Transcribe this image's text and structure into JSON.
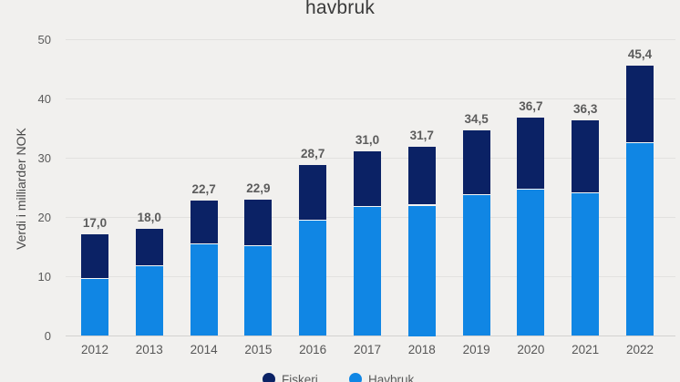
{
  "title": "havbruk",
  "y_axis": {
    "label": "Verdi i milliarder NOK",
    "ticks": [
      0,
      10,
      20,
      30,
      40,
      50
    ]
  },
  "x_axis": {
    "labels": [
      "2012",
      "2013",
      "2014",
      "2015",
      "2016",
      "2017",
      "2018",
      "2019",
      "2020",
      "2021",
      "2022"
    ]
  },
  "legend": {
    "items": [
      {
        "label": "Fiskeri",
        "color": "#0b2265"
      },
      {
        "label": "Havbruk",
        "color": "#1086e4"
      }
    ]
  },
  "colors": {
    "background": "#f1f0ee",
    "dark_navy": "#0b2265",
    "light_blue": "#1086e4",
    "gridline": "#e2e1df",
    "axis_line": "#d2d1cf",
    "label_gray": "#5c5c5c",
    "title_gray": "#3a3a3a"
  },
  "chart_data": {
    "type": "bar",
    "stacked": true,
    "title": "havbruk",
    "xlabel": "",
    "ylabel": "Verdi i milliarder NOK",
    "ylim": [
      0,
      50
    ],
    "grid": true,
    "legend_position": "bottom",
    "categories": [
      "2012",
      "2013",
      "2014",
      "2015",
      "2016",
      "2017",
      "2018",
      "2019",
      "2020",
      "2021",
      "2022"
    ],
    "series": [
      {
        "name": "Havbruk",
        "color": "#1086e4",
        "values": [
          9.6,
          11.8,
          15.4,
          15.2,
          19.4,
          21.8,
          22.0,
          23.8,
          24.7,
          24.1,
          32.6
        ]
      },
      {
        "name": "Fiskeri",
        "color": "#0b2265",
        "values": [
          7.4,
          6.2,
          7.3,
          7.7,
          9.3,
          9.2,
          9.7,
          10.7,
          12.0,
          12.2,
          12.8
        ]
      }
    ],
    "totals": [
      17.0,
      18.0,
      22.7,
      22.9,
      28.7,
      31.0,
      31.7,
      34.5,
      36.7,
      36.3,
      45.4
    ],
    "total_labels": [
      "17,0",
      "18,0",
      "22,7",
      "22,9",
      "28,7",
      "31,0",
      "31,7",
      "34,5",
      "36,7",
      "36,3",
      "45,4"
    ]
  }
}
